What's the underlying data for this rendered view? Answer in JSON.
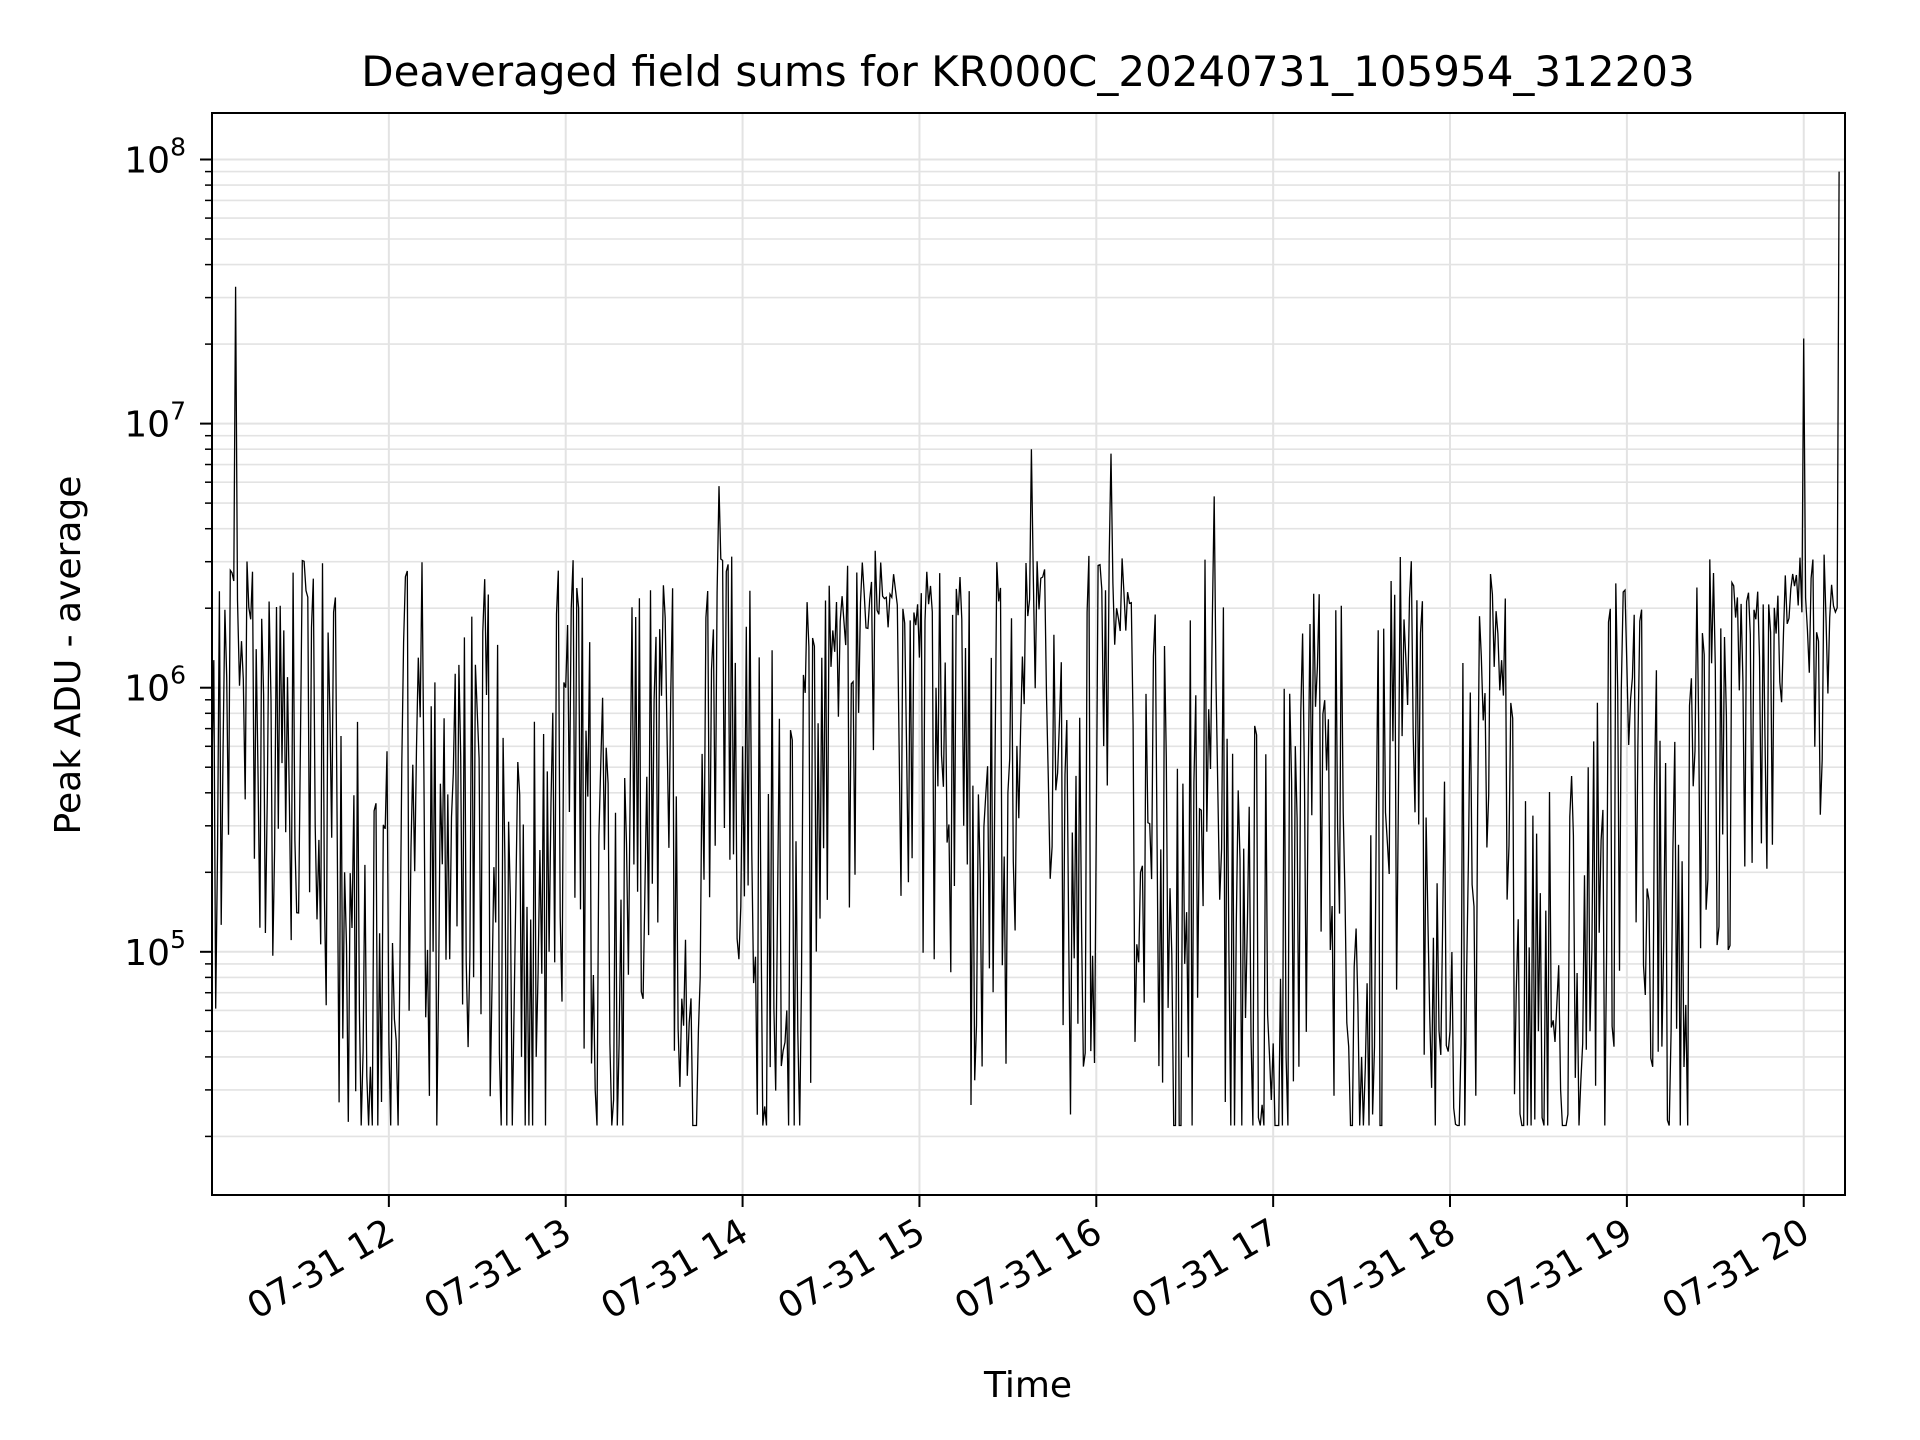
{
  "chart_data": {
    "type": "line",
    "title": "Deaveraged field sums for KR000C_20240731_105954_312203",
    "xlabel": "Time",
    "ylabel": "Peak ADU - average",
    "yscale": "log",
    "xlim": [
      "2024-07-31 11:00",
      "2024-07-31 20:14"
    ],
    "ylim": [
      12000,
      150000000
    ],
    "grid": true,
    "line_color": "#000000",
    "x_ticks": [
      {
        "value": "2024-07-31 12:00",
        "label": "07-31 12"
      },
      {
        "value": "2024-07-31 13:00",
        "label": "07-31 13"
      },
      {
        "value": "2024-07-31 14:00",
        "label": "07-31 14"
      },
      {
        "value": "2024-07-31 15:00",
        "label": "07-31 15"
      },
      {
        "value": "2024-07-31 16:00",
        "label": "07-31 16"
      },
      {
        "value": "2024-07-31 17:00",
        "label": "07-31 17"
      },
      {
        "value": "2024-07-31 18:00",
        "label": "07-31 18"
      },
      {
        "value": "2024-07-31 19:00",
        "label": "07-31 19"
      },
      {
        "value": "2024-07-31 20:00",
        "label": "07-31 20"
      }
    ],
    "y_ticks": [
      {
        "value": 100000,
        "base": "10",
        "exp": "5"
      },
      {
        "value": 1000000,
        "base": "10",
        "exp": "6"
      },
      {
        "value": 10000000,
        "base": "10",
        "exp": "7"
      },
      {
        "value": 100000000,
        "base": "10",
        "exp": "8"
      }
    ],
    "series": [
      {
        "x": [
          "2024-07-31 11:00",
          "2024-07-31 11:05",
          "2024-07-31 11:08",
          "2024-07-31 11:10",
          "2024-07-31 11:15",
          "2024-07-31 11:20",
          "2024-07-31 11:30",
          "2024-07-31 11:35",
          "2024-07-31 11:40",
          "2024-07-31 11:45",
          "2024-07-31 11:50",
          "2024-07-31 12:00",
          "2024-07-31 12:10",
          "2024-07-31 12:15",
          "2024-07-31 12:30",
          "2024-07-31 12:45",
          "2024-07-31 13:00",
          "2024-07-31 13:15",
          "2024-07-31 13:30",
          "2024-07-31 13:45",
          "2024-07-31 13:52",
          "2024-07-31 14:00",
          "2024-07-31 14:15",
          "2024-07-31 14:30",
          "2024-07-31 14:45",
          "2024-07-31 15:00",
          "2024-07-31 15:15",
          "2024-07-31 15:30",
          "2024-07-31 15:38",
          "2024-07-31 15:45",
          "2024-07-31 16:00",
          "2024-07-31 16:05",
          "2024-07-31 16:15",
          "2024-07-31 16:30",
          "2024-07-31 16:40",
          "2024-07-31 16:45",
          "2024-07-31 17:00",
          "2024-07-31 17:15",
          "2024-07-31 17:30",
          "2024-07-31 17:45",
          "2024-07-31 18:00",
          "2024-07-31 18:15",
          "2024-07-31 18:30",
          "2024-07-31 18:45",
          "2024-07-31 19:00",
          "2024-07-31 19:15",
          "2024-07-31 19:30",
          "2024-07-31 19:45",
          "2024-07-31 20:00",
          "2024-07-31 20:05",
          "2024-07-31 20:12"
        ],
        "y": [
          500000,
          1100000,
          33000000,
          1500000,
          1400000,
          900000,
          600000,
          300000,
          800000,
          200000,
          60000,
          45000,
          1300000,
          100000,
          800000,
          40000,
          1000000,
          45000,
          900000,
          50000,
          5800000,
          600000,
          60000,
          1200000,
          3300000,
          1300000,
          300000,
          400000,
          8000000,
          250000,
          300000,
          7700000,
          200000,
          90000,
          5300000,
          100000,
          45000,
          1200000,
          40000,
          1300000,
          50000,
          1200000,
          50000,
          45000,
          1200000,
          50000,
          1200000,
          1300000,
          21000000,
          1500000,
          90000000
        ]
      }
    ]
  }
}
